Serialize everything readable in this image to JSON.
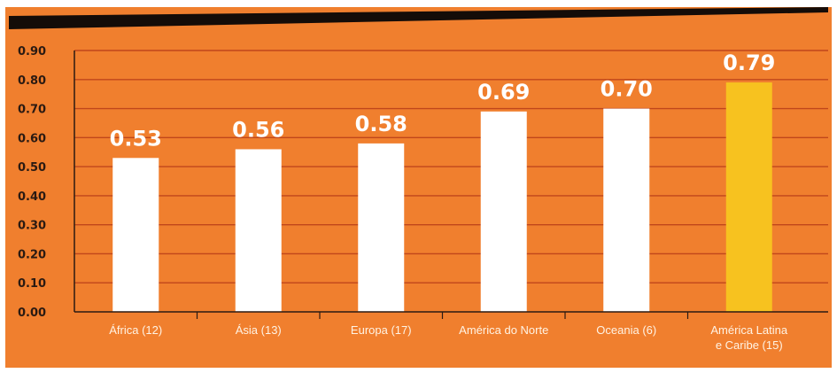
{
  "colors": {
    "background": "#f07f2e",
    "gridline": "#c0461b",
    "bar": "#ffffff",
    "highlight_bar": "#f7c21f",
    "top_band": "#140c08",
    "tick_text": "#2a1a12",
    "category_text": "#fff3e4",
    "frame": "#ffffff"
  },
  "chart_data": {
    "type": "bar",
    "title": "",
    "xlabel": "",
    "ylabel": "",
    "ylim": [
      0,
      0.9
    ],
    "yticks": [
      "0.00",
      "0.10",
      "0.20",
      "0.30",
      "0.40",
      "0.50",
      "0.60",
      "0.70",
      "0.80",
      "0.90"
    ],
    "grid": true,
    "legend": "none",
    "categories": [
      [
        "África (12)"
      ],
      [
        "Ásia (13)"
      ],
      [
        "Europa (17)"
      ],
      [
        "América do Norte"
      ],
      [
        "Oceania (6)"
      ],
      [
        "América Latina",
        "e Caribe  (15)"
      ]
    ],
    "values": [
      0.53,
      0.56,
      0.58,
      0.69,
      0.7,
      0.79
    ],
    "value_labels": [
      "0.53",
      "0.56",
      "0.58",
      "0.69",
      "0.70",
      "0.79"
    ],
    "highlight_index": 5
  }
}
